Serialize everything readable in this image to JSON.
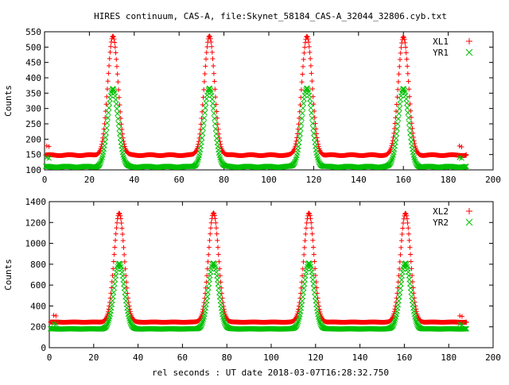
{
  "page": {
    "title": "HIRES continuum, CAS-A, file:Skynet_58184_CAS-A_32044_32806.cyb.txt",
    "xlabel": "rel seconds : UT date 2018-03-07T16:28:32.750"
  },
  "colors": {
    "xl": "#ff0000",
    "yr": "#00c000",
    "axis": "#000000",
    "background": "#ffffff"
  },
  "chart_data": [
    {
      "type": "scatter",
      "ylabel": "Counts",
      "xlim": [
        0,
        200
      ],
      "ylim": [
        100,
        550
      ],
      "xticks": [
        0,
        20,
        40,
        60,
        80,
        100,
        120,
        140,
        160,
        180,
        200
      ],
      "yticks": [
        100,
        150,
        200,
        250,
        300,
        350,
        400,
        450,
        500,
        550
      ],
      "grid": false,
      "legend_position": "top-right",
      "x_range": [
        0,
        188
      ],
      "peak_centers": [
        30.5,
        73.5,
        117,
        160
      ],
      "series": [
        {
          "name": "XL1",
          "marker": "plus",
          "color": "#ff0000",
          "baseline": 148,
          "peak": 535,
          "peak_sigma": 2.3,
          "edge_points": [
            [
              1,
              178
            ],
            [
              2,
              176
            ],
            [
              185,
              178
            ],
            [
              186,
              175
            ],
            [
              188,
              150
            ]
          ]
        },
        {
          "name": "YR1",
          "marker": "cross",
          "color": "#00c000",
          "baseline": 110,
          "peak": 365,
          "peak_sigma": 2.3,
          "edge_points": [
            [
              1,
              140
            ],
            [
              2,
              138
            ],
            [
              185,
              140
            ],
            [
              186,
              138
            ],
            [
              188,
              112
            ]
          ]
        }
      ]
    },
    {
      "type": "scatter",
      "ylabel": "Counts",
      "xlim": [
        0,
        200
      ],
      "ylim": [
        0,
        1400
      ],
      "xticks": [
        0,
        20,
        40,
        60,
        80,
        100,
        120,
        140,
        160,
        180,
        200
      ],
      "yticks": [
        0,
        200,
        400,
        600,
        800,
        1000,
        1200,
        1400
      ],
      "grid": false,
      "legend_position": "top-right",
      "x_range": [
        0,
        188
      ],
      "peak_centers": [
        31.5,
        74,
        117,
        160.5
      ],
      "series": [
        {
          "name": "XL2",
          "marker": "plus",
          "color": "#ff0000",
          "baseline": 245,
          "peak": 1290,
          "peak_sigma": 2.3,
          "edge_points": [
            [
              2,
              310
            ],
            [
              3,
              305
            ],
            [
              185,
              305
            ],
            [
              186,
              300
            ],
            [
              188,
              245
            ]
          ]
        },
        {
          "name": "YR2",
          "marker": "cross",
          "color": "#00c000",
          "baseline": 180,
          "peak": 810,
          "peak_sigma": 2.3,
          "edge_points": [
            [
              2,
              230
            ],
            [
              3,
              225
            ],
            [
              185,
              225
            ],
            [
              186,
              220
            ],
            [
              188,
              182
            ]
          ]
        }
      ]
    }
  ]
}
